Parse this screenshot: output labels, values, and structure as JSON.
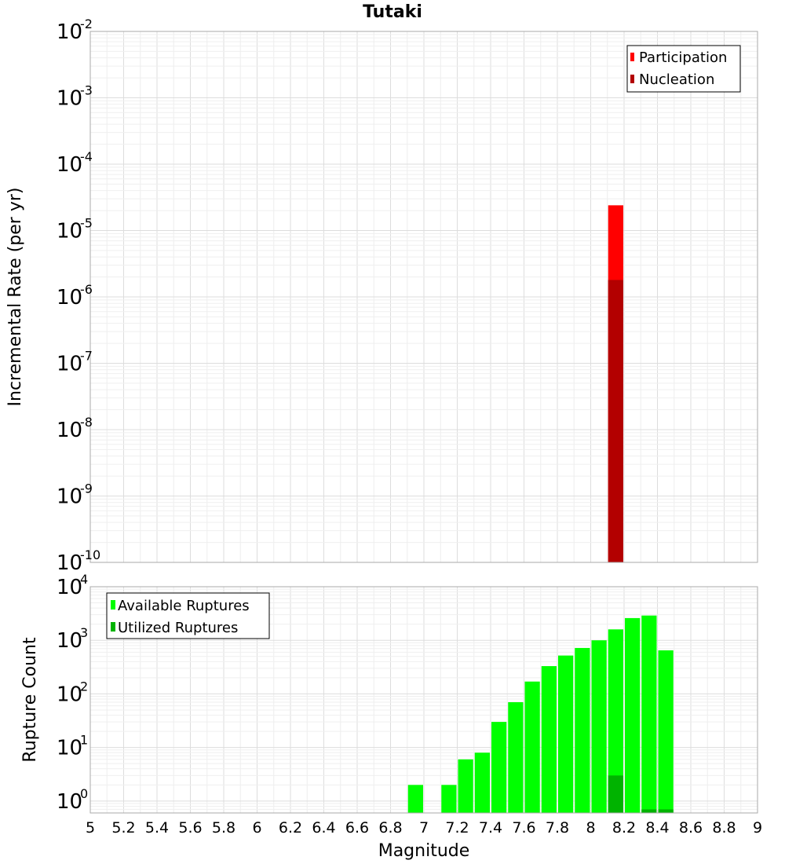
{
  "chart_data": [
    {
      "type": "bar",
      "title": "Tutaki",
      "xlabel": "",
      "ylabel": "Incremental Rate (per yr)",
      "yscale": "log",
      "ylim": [
        1e-10,
        0.01
      ],
      "xlim": [
        5,
        9
      ],
      "grid": true,
      "legend_position": "top-right",
      "y_ticks": [
        {
          "base": "10",
          "exp": "-2",
          "value": 0.01
        },
        {
          "base": "10",
          "exp": "-3",
          "value": 0.001
        },
        {
          "base": "10",
          "exp": "-4",
          "value": 0.0001
        },
        {
          "base": "10",
          "exp": "-5",
          "value": 1e-05
        },
        {
          "base": "10",
          "exp": "-6",
          "value": 1e-06
        },
        {
          "base": "10",
          "exp": "-7",
          "value": 1e-07
        },
        {
          "base": "10",
          "exp": "-8",
          "value": 1e-08
        },
        {
          "base": "10",
          "exp": "-9",
          "value": 1e-09
        },
        {
          "base": "10",
          "exp": "-10",
          "value": 1e-10
        }
      ],
      "series": [
        {
          "name": "Participation",
          "color": "#ff0000",
          "x": [
            8.15
          ],
          "values": [
            2.4e-05
          ]
        },
        {
          "name": "Nucleation",
          "color": "#b30000",
          "x": [
            8.15
          ],
          "values": [
            1.8e-06
          ]
        }
      ]
    },
    {
      "type": "bar",
      "title": "",
      "xlabel": "Magnitude",
      "ylabel": "Rupture Count",
      "yscale": "log",
      "ylim": [
        0.6,
        10000
      ],
      "xlim": [
        5,
        9
      ],
      "grid": true,
      "legend_position": "top-left",
      "x_ticks": [
        "5",
        "5.2",
        "5.4",
        "5.6",
        "5.8",
        "6",
        "6.2",
        "6.4",
        "6.6",
        "6.8",
        "7",
        "7.2",
        "7.4",
        "7.6",
        "7.8",
        "8",
        "8.2",
        "8.4",
        "8.6",
        "8.8",
        "9"
      ],
      "y_ticks": [
        {
          "base": "10",
          "exp": "4",
          "value": 10000
        },
        {
          "base": "10",
          "exp": "3",
          "value": 1000
        },
        {
          "base": "10",
          "exp": "2",
          "value": 100
        },
        {
          "base": "10",
          "exp": "1",
          "value": 10
        },
        {
          "base": "10",
          "exp": "0",
          "value": 1
        }
      ],
      "series": [
        {
          "name": "Available Ruptures",
          "color": "#00ff00",
          "x": [
            6.95,
            7.15,
            7.25,
            7.35,
            7.45,
            7.55,
            7.65,
            7.75,
            7.85,
            7.95,
            8.05,
            8.15,
            8.25,
            8.35,
            8.45
          ],
          "values": [
            2,
            2,
            6,
            8,
            30,
            70,
            170,
            330,
            520,
            720,
            1000,
            1600,
            2600,
            2900,
            650
          ]
        },
        {
          "name": "Utilized Ruptures",
          "color": "#00b300",
          "x": [
            8.15,
            8.35,
            8.45
          ],
          "values": [
            3,
            0.7,
            0.7
          ]
        }
      ]
    }
  ]
}
